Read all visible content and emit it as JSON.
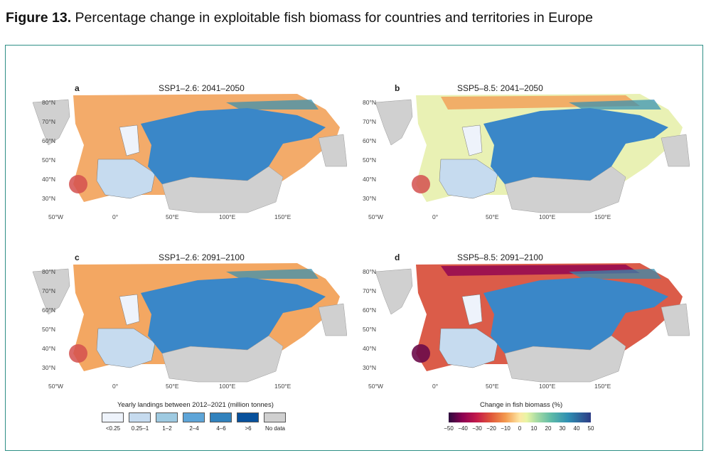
{
  "figure": {
    "label": "Figure 13.",
    "caption": "Percentage change in exploitable fish biomass for countries and territories in Europe"
  },
  "panels": [
    {
      "letter": "a",
      "title": "SSP1–2.6: 2041–2050"
    },
    {
      "letter": "b",
      "title": "SSP5–8.5: 2041–2050"
    },
    {
      "letter": "c",
      "title": "SSP1–2.6: 2091–2100"
    },
    {
      "letter": "d",
      "title": "SSP5–8.5: 2091–2100"
    }
  ],
  "axes": {
    "latitudes": [
      "80°N",
      "70°N",
      "60°N",
      "50°N",
      "40°N",
      "30°N"
    ],
    "longitudes": [
      "50°W",
      "0°",
      "50°E",
      "100°E",
      "150°E"
    ]
  },
  "landings_legend": {
    "title": "Yearly landings between 2012–2021 (million tonnes)",
    "items": [
      {
        "label": "<0.25",
        "color": "#eef3fb"
      },
      {
        "label": "0.25–1",
        "color": "#c6dbef"
      },
      {
        "label": "1–2",
        "color": "#9ecae1"
      },
      {
        "label": "2–4",
        "color": "#5ea5d8"
      },
      {
        "label": "4–6",
        "color": "#3182bd"
      },
      {
        "label": ">6",
        "color": "#08519c"
      },
      {
        "label": "No data",
        "color": "#d0d0d0"
      }
    ]
  },
  "biomass_legend": {
    "title": "Change in fish biomass (%)",
    "ticks": [
      "−50",
      "−40",
      "−30",
      "−20",
      "−10",
      "0",
      "10",
      "20",
      "30",
      "40",
      "50"
    ]
  },
  "colors": {
    "frame": "#2e8f86",
    "russia": "#3a87c8",
    "land_nodata": "#d0d0d0",
    "ocean_warm": "#f2a25a",
    "ocean_mixed": "#e8f0b0"
  }
}
